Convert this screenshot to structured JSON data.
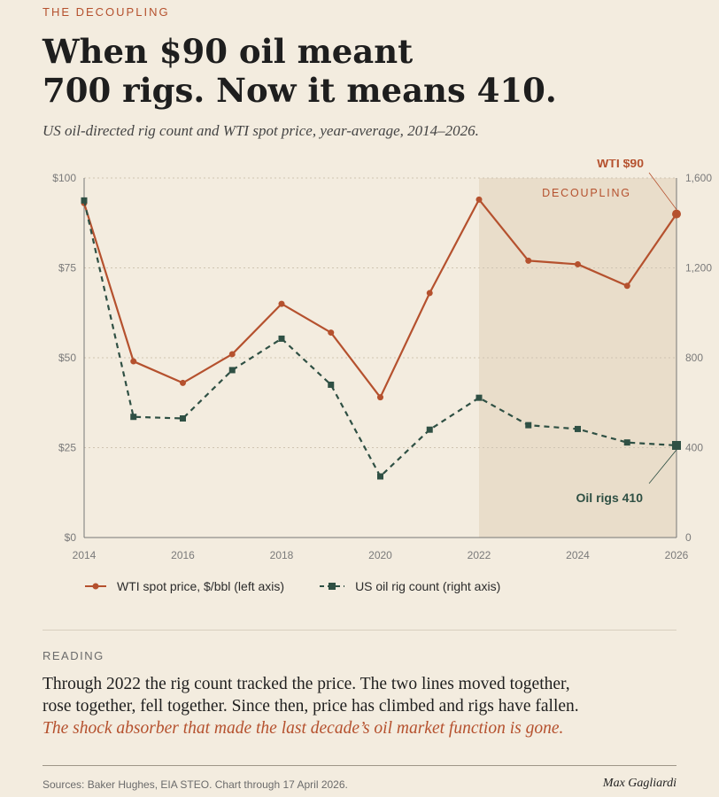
{
  "header": {
    "eyebrow": "THE DECOUPLING",
    "title_line1": "When $90 oil meant",
    "title_line2": "700 rigs. Now it means 410.",
    "subtitle": "US oil-directed rig count and WTI spot price, year-average, 2014–2026."
  },
  "chart_data": {
    "type": "line",
    "x": [
      2014,
      2015,
      2016,
      2017,
      2018,
      2019,
      2020,
      2021,
      2022,
      2023,
      2024,
      2025,
      2026
    ],
    "x_ticks": [
      "2014",
      "2016",
      "2018",
      "2020",
      "2022",
      "2024",
      "2026"
    ],
    "xlim": [
      2014,
      2026
    ],
    "left_axis": {
      "ylim": [
        0,
        100
      ],
      "ticks": [
        "$0",
        "$25",
        "$50",
        "$75",
        "$100"
      ]
    },
    "right_axis": {
      "ylim": [
        0,
        1600
      ],
      "ticks": [
        "0",
        "400",
        "800",
        "1,200",
        "1,600"
      ]
    },
    "series": [
      {
        "name": "WTI spot price, $/bbl (left axis)",
        "axis": "left",
        "color": "#b5512e",
        "marker": "circle",
        "dash": "solid",
        "values": [
          93,
          49,
          43,
          51,
          65,
          57,
          39,
          68,
          94,
          77,
          76,
          70,
          90
        ]
      },
      {
        "name": "US oil rig count (right axis)",
        "axis": "right",
        "color": "#2f5044",
        "marker": "square",
        "dash": "dashed",
        "values": [
          1500,
          537,
          530,
          745,
          885,
          680,
          272,
          480,
          622,
          500,
          483,
          423,
          410
        ]
      }
    ],
    "shaded_region": {
      "x_start": 2022,
      "x_end": 2026,
      "label": "DECOUPLING"
    },
    "annotations": [
      {
        "text": "WTI $90",
        "series": 0,
        "x": 2026
      },
      {
        "text": "Oil rigs 410",
        "series": 1,
        "x": 2026
      }
    ],
    "grid": true,
    "legend": "bottom"
  },
  "reading": {
    "label": "READING",
    "line1": "Through 2022 the rig count tracked the price. The two lines moved together,",
    "line2": "rose together, fell together. Since then, price has climbed and rigs have fallen.",
    "line3": "The shock absorber that made the last decade’s oil market function is gone."
  },
  "footer": {
    "sources": "Sources: Baker Hughes, EIA STEO. Chart through 17 April 2026.",
    "author": "Max Gagliardi"
  }
}
